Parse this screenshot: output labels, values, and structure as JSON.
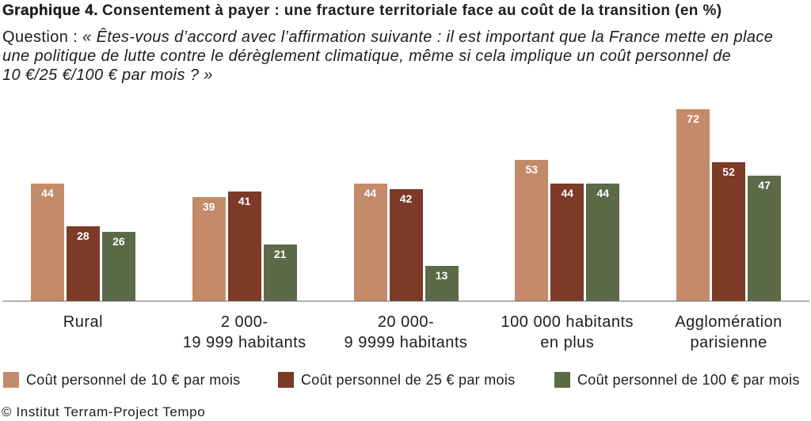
{
  "chart_data": {
    "type": "bar",
    "title_label": "Graphique 4.",
    "title": "Consentement à payer : une fracture territoriale face au coût de la transition (en %)",
    "subtitle_label": "Question :",
    "subtitle_lines": [
      "« Êtes-vous d’accord avec l’affirmation suivante : il est important que la France mette en place",
      "une politique de lutte contre le dérèglement climatique, même si cela implique un coût personnel de",
      "10 €/25 €/100 € par mois ? »"
    ],
    "xlabel": "",
    "ylabel": "",
    "categories": [
      "Rural",
      "2 000-\n19 999 habitants",
      "20 000-\n9 9999 habitants",
      "100 000 habitants\nen plus",
      "Agglomération\nparisienne"
    ],
    "series": [
      {
        "name": "Coût personnel de 10 € par mois",
        "color": "#C48B6A",
        "values": [
          44,
          39,
          44,
          53,
          72
        ]
      },
      {
        "name": "Coût personnel de 25 € par mois",
        "color": "#7C3A27",
        "values": [
          28,
          41,
          42,
          44,
          52
        ]
      },
      {
        "name": "Coût personnel de 100 € par mois",
        "color": "#5C6A47",
        "values": [
          26,
          21,
          13,
          44,
          47
        ]
      }
    ],
    "data_labels": true,
    "grid": false,
    "legend": "bottom",
    "source": "© Institut Terram-Project Tempo"
  }
}
